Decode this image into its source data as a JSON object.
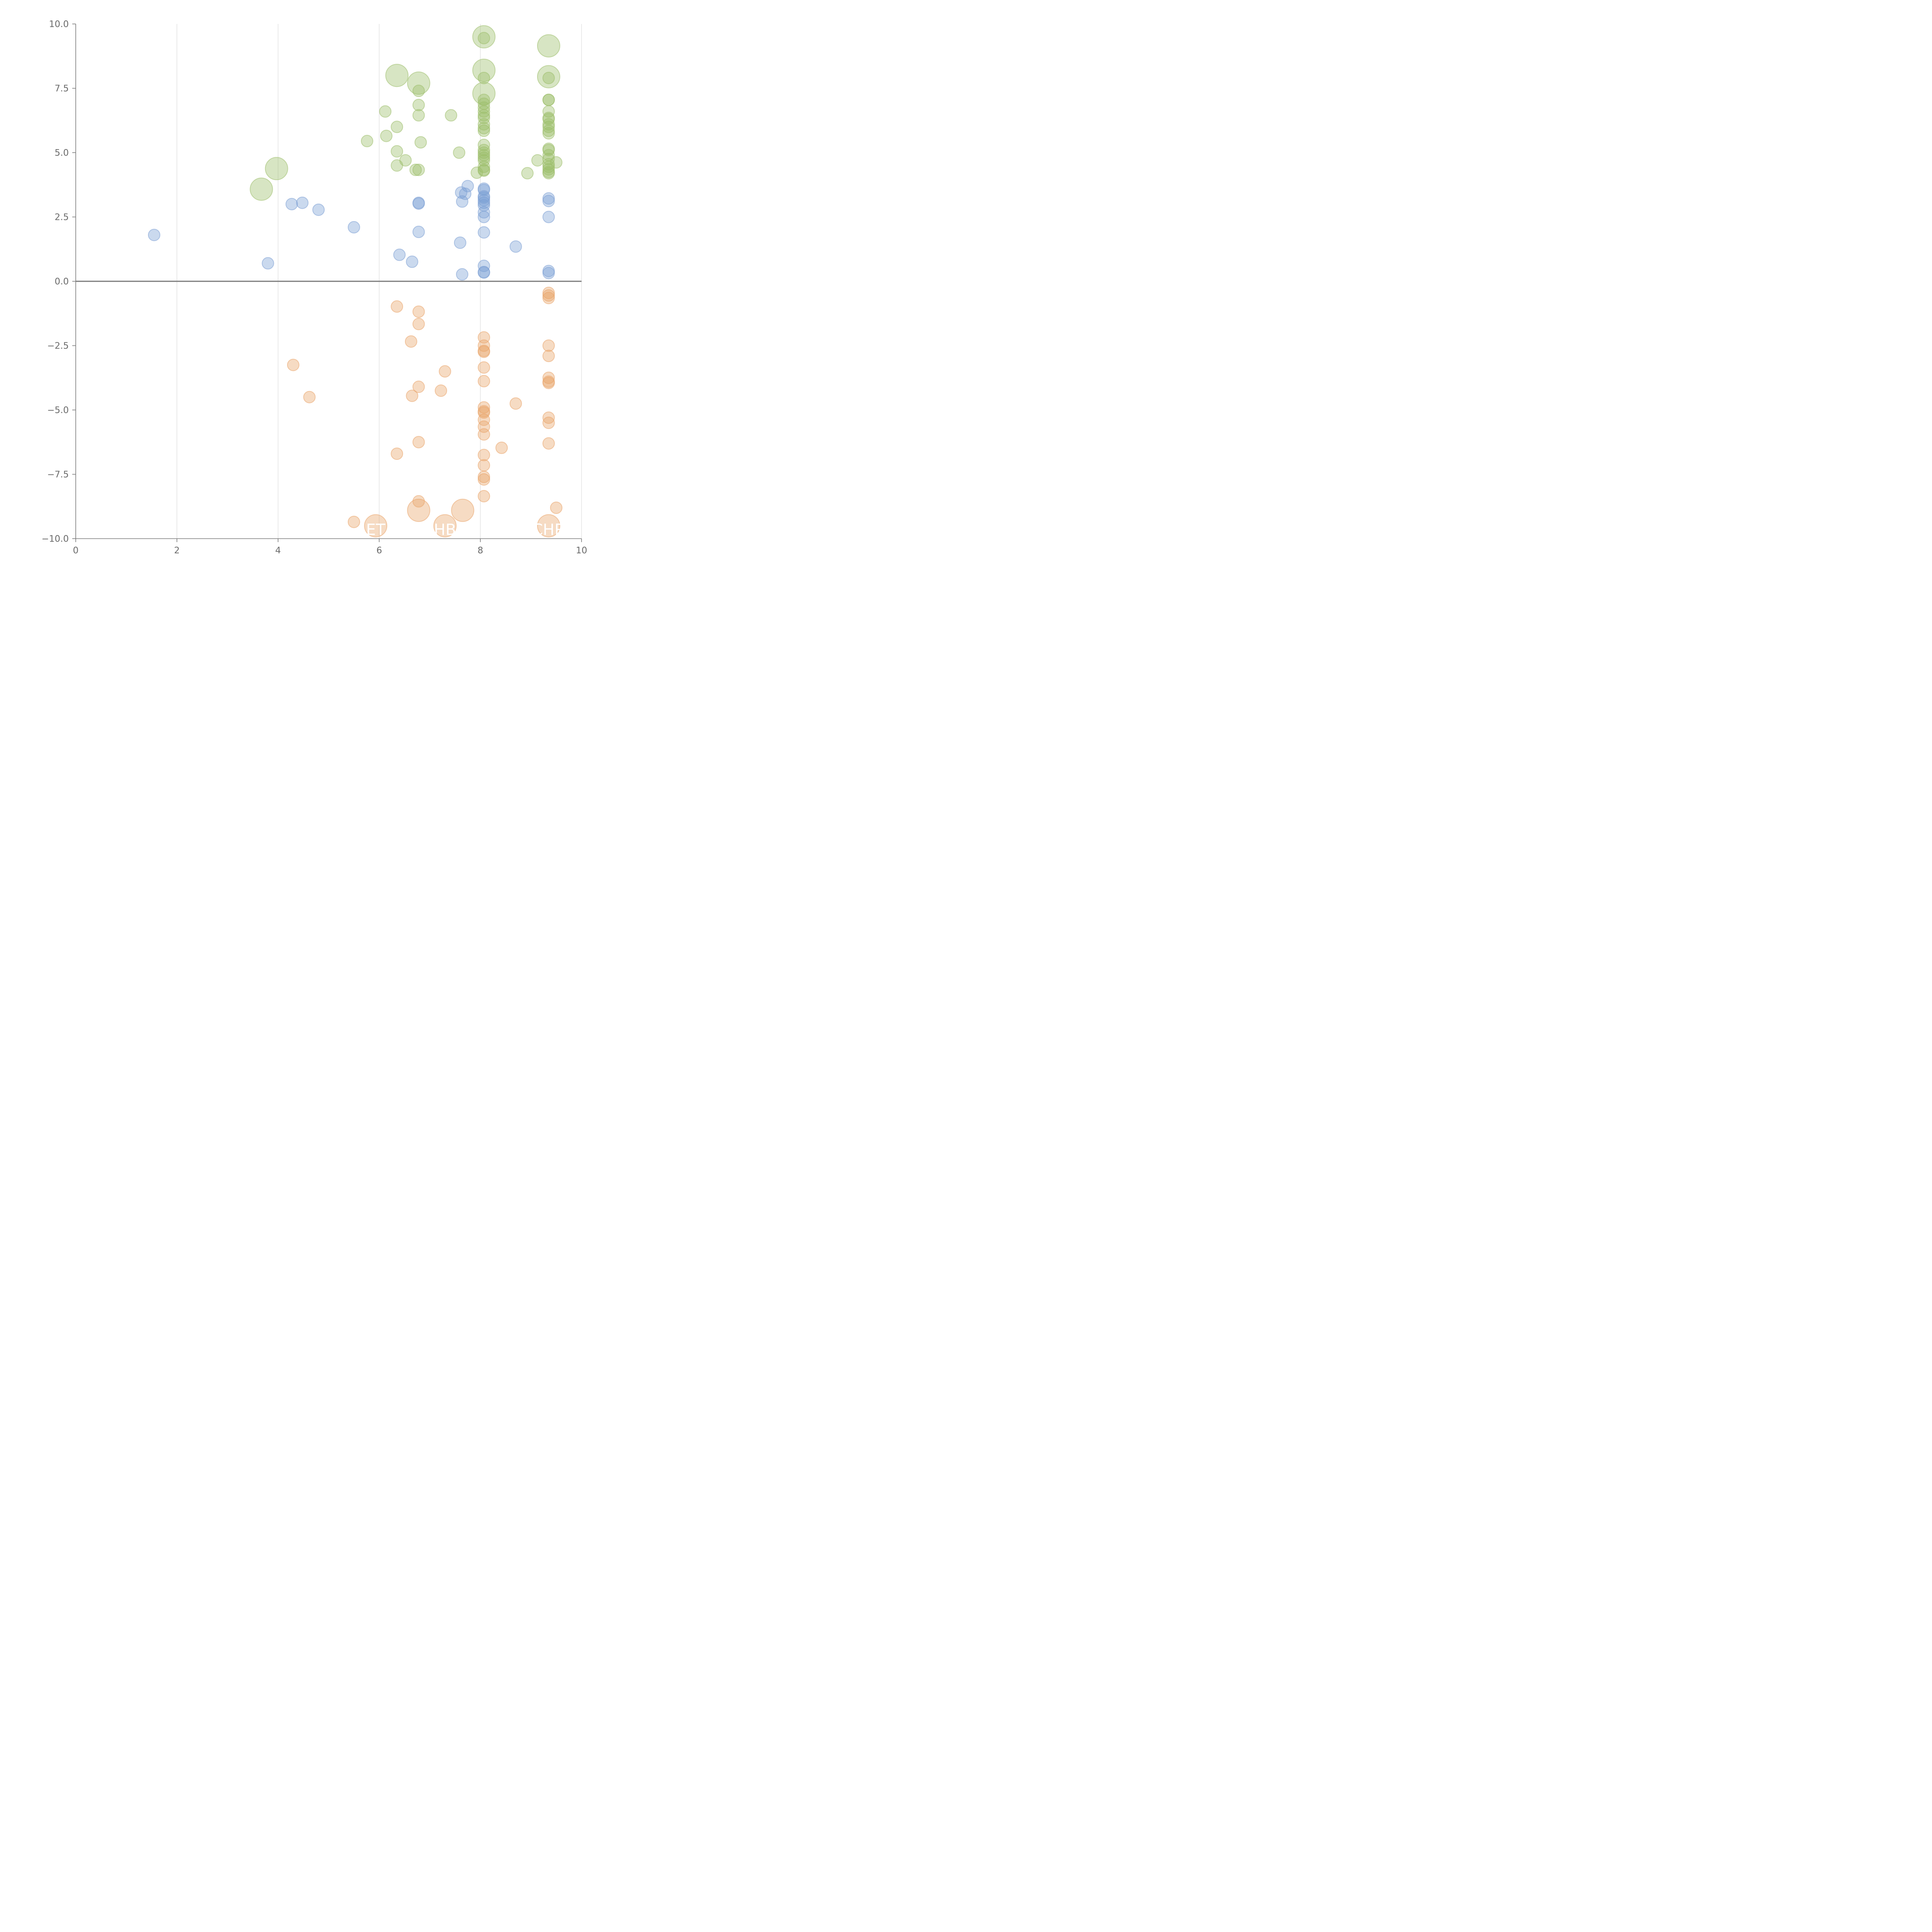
{
  "chart_data": {
    "type": "scatter",
    "title": "",
    "xlabel": "",
    "ylabel": "",
    "xlim": [
      0,
      10
    ],
    "ylim": [
      -10,
      10
    ],
    "x_ticks": [
      "0",
      "2",
      "4",
      "6",
      "8",
      "10"
    ],
    "y_ticks": [
      "10.0",
      "7.5",
      "5.0",
      "2.5",
      "0.0",
      "−2.5",
      "−5.0",
      "−7.5",
      "−10.0"
    ],
    "x_tick_values": [
      0,
      2,
      4,
      6,
      8,
      10
    ],
    "y_tick_values": [
      10,
      7.5,
      5,
      2.5,
      0,
      -2.5,
      -5,
      -7.5,
      -10
    ],
    "grid": "vertical",
    "zero_line": true,
    "series": [
      {
        "color": "#9cbe6a",
        "points": [
          {
            "x": 8.07,
            "y": 9.5,
            "s": 3
          },
          {
            "x": 8.07,
            "y": 9.45,
            "s": 1
          },
          {
            "x": 9.35,
            "y": 9.15,
            "s": 3
          },
          {
            "x": 8.07,
            "y": 8.2,
            "s": 3
          },
          {
            "x": 9.35,
            "y": 7.95,
            "s": 3
          },
          {
            "x": 6.35,
            "y": 8.0,
            "s": 3
          },
          {
            "x": 6.78,
            "y": 7.7,
            "s": 3
          },
          {
            "x": 8.07,
            "y": 7.9,
            "s": 1
          },
          {
            "x": 9.35,
            "y": 7.9,
            "s": 1
          },
          {
            "x": 6.78,
            "y": 7.4,
            "s": 1
          },
          {
            "x": 8.07,
            "y": 7.3,
            "s": 3
          },
          {
            "x": 8.07,
            "y": 7.05,
            "s": 1
          },
          {
            "x": 9.35,
            "y": 7.05,
            "s": 1
          },
          {
            "x": 9.35,
            "y": 7.05,
            "s": 1
          },
          {
            "x": 8.07,
            "y": 6.9,
            "s": 1
          },
          {
            "x": 8.07,
            "y": 6.75,
            "s": 1
          },
          {
            "x": 8.07,
            "y": 6.6,
            "s": 1
          },
          {
            "x": 6.78,
            "y": 6.85,
            "s": 1
          },
          {
            "x": 6.12,
            "y": 6.6,
            "s": 1
          },
          {
            "x": 9.35,
            "y": 6.6,
            "s": 1
          },
          {
            "x": 7.42,
            "y": 6.45,
            "s": 1
          },
          {
            "x": 6.78,
            "y": 6.45,
            "s": 1
          },
          {
            "x": 8.07,
            "y": 6.45,
            "s": 1
          },
          {
            "x": 8.07,
            "y": 6.35,
            "s": 1
          },
          {
            "x": 9.35,
            "y": 6.35,
            "s": 1
          },
          {
            "x": 9.35,
            "y": 6.3,
            "s": 1
          },
          {
            "x": 8.07,
            "y": 6.1,
            "s": 1
          },
          {
            "x": 9.35,
            "y": 6.1,
            "s": 1
          },
          {
            "x": 9.35,
            "y": 6.0,
            "s": 1
          },
          {
            "x": 6.35,
            "y": 6.0,
            "s": 1
          },
          {
            "x": 8.07,
            "y": 5.95,
            "s": 1
          },
          {
            "x": 8.07,
            "y": 5.85,
            "s": 1
          },
          {
            "x": 9.35,
            "y": 5.85,
            "s": 1
          },
          {
            "x": 9.35,
            "y": 5.75,
            "s": 1
          },
          {
            "x": 6.14,
            "y": 5.65,
            "s": 1
          },
          {
            "x": 5.76,
            "y": 5.45,
            "s": 1
          },
          {
            "x": 6.82,
            "y": 5.4,
            "s": 1
          },
          {
            "x": 8.07,
            "y": 5.3,
            "s": 1
          },
          {
            "x": 9.35,
            "y": 5.15,
            "s": 1
          },
          {
            "x": 9.35,
            "y": 5.1,
            "s": 1
          },
          {
            "x": 8.07,
            "y": 5.1,
            "s": 1
          },
          {
            "x": 8.07,
            "y": 5.0,
            "s": 1
          },
          {
            "x": 6.35,
            "y": 5.05,
            "s": 1
          },
          {
            "x": 7.58,
            "y": 5.0,
            "s": 1
          },
          {
            "x": 8.07,
            "y": 4.9,
            "s": 1
          },
          {
            "x": 9.35,
            "y": 4.9,
            "s": 1
          },
          {
            "x": 8.07,
            "y": 4.8,
            "s": 1
          },
          {
            "x": 9.13,
            "y": 4.7,
            "s": 1
          },
          {
            "x": 9.35,
            "y": 4.75,
            "s": 1
          },
          {
            "x": 6.52,
            "y": 4.7,
            "s": 1
          },
          {
            "x": 8.07,
            "y": 4.7,
            "s": 1
          },
          {
            "x": 9.5,
            "y": 4.62,
            "s": 1
          },
          {
            "x": 9.35,
            "y": 4.55,
            "s": 1
          },
          {
            "x": 6.35,
            "y": 4.5,
            "s": 1
          },
          {
            "x": 8.07,
            "y": 4.45,
            "s": 1
          },
          {
            "x": 9.35,
            "y": 4.45,
            "s": 1
          },
          {
            "x": 3.97,
            "y": 4.38,
            "s": 3
          },
          {
            "x": 6.72,
            "y": 4.33,
            "s": 1
          },
          {
            "x": 6.78,
            "y": 4.33,
            "s": 1
          },
          {
            "x": 9.35,
            "y": 4.35,
            "s": 1
          },
          {
            "x": 8.07,
            "y": 4.33,
            "s": 1
          },
          {
            "x": 8.07,
            "y": 4.3,
            "s": 1
          },
          {
            "x": 9.35,
            "y": 4.25,
            "s": 1
          },
          {
            "x": 7.93,
            "y": 4.22,
            "s": 1
          },
          {
            "x": 9.35,
            "y": 4.2,
            "s": 1
          },
          {
            "x": 8.93,
            "y": 4.2,
            "s": 1
          },
          {
            "x": 3.67,
            "y": 3.58,
            "s": 3
          }
        ]
      },
      {
        "color": "#7b9fd4",
        "points": [
          {
            "x": 7.75,
            "y": 3.7,
            "s": 1
          },
          {
            "x": 8.07,
            "y": 3.6,
            "s": 1
          },
          {
            "x": 8.07,
            "y": 3.55,
            "s": 1
          },
          {
            "x": 7.62,
            "y": 3.45,
            "s": 1
          },
          {
            "x": 7.7,
            "y": 3.4,
            "s": 1
          },
          {
            "x": 8.07,
            "y": 3.3,
            "s": 1
          },
          {
            "x": 8.07,
            "y": 3.25,
            "s": 1
          },
          {
            "x": 9.35,
            "y": 3.22,
            "s": 1
          },
          {
            "x": 8.07,
            "y": 3.15,
            "s": 1
          },
          {
            "x": 9.35,
            "y": 3.12,
            "s": 1
          },
          {
            "x": 7.64,
            "y": 3.1,
            "s": 1
          },
          {
            "x": 8.07,
            "y": 3.05,
            "s": 1
          },
          {
            "x": 4.48,
            "y": 3.05,
            "s": 1
          },
          {
            "x": 6.78,
            "y": 3.05,
            "s": 1
          },
          {
            "x": 6.78,
            "y": 3.02,
            "s": 1
          },
          {
            "x": 4.27,
            "y": 3.0,
            "s": 1
          },
          {
            "x": 8.07,
            "y": 2.95,
            "s": 1
          },
          {
            "x": 4.8,
            "y": 2.78,
            "s": 1
          },
          {
            "x": 8.07,
            "y": 2.68,
            "s": 1
          },
          {
            "x": 8.07,
            "y": 2.5,
            "s": 1
          },
          {
            "x": 9.35,
            "y": 2.5,
            "s": 1
          },
          {
            "x": 5.5,
            "y": 2.1,
            "s": 1
          },
          {
            "x": 6.78,
            "y": 1.92,
            "s": 1
          },
          {
            "x": 8.07,
            "y": 1.9,
            "s": 1
          },
          {
            "x": 1.55,
            "y": 1.8,
            "s": 1
          },
          {
            "x": 7.6,
            "y": 1.5,
            "s": 1
          },
          {
            "x": 8.7,
            "y": 1.35,
            "s": 1
          },
          {
            "x": 6.4,
            "y": 1.03,
            "s": 1
          },
          {
            "x": 6.65,
            "y": 0.76,
            "s": 1
          },
          {
            "x": 3.8,
            "y": 0.7,
            "s": 1
          },
          {
            "x": 8.07,
            "y": 0.6,
            "s": 1
          },
          {
            "x": 9.35,
            "y": 0.4,
            "s": 1
          },
          {
            "x": 8.07,
            "y": 0.36,
            "s": 1
          },
          {
            "x": 8.07,
            "y": 0.34,
            "s": 1
          },
          {
            "x": 9.35,
            "y": 0.32,
            "s": 1
          },
          {
            "x": 7.64,
            "y": 0.27,
            "s": 1
          }
        ]
      },
      {
        "color": "#e9a46a",
        "points": [
          {
            "x": 9.35,
            "y": -0.45,
            "s": 1
          },
          {
            "x": 9.35,
            "y": -0.55,
            "s": 1
          },
          {
            "x": 9.35,
            "y": -0.65,
            "s": 1
          },
          {
            "x": 6.35,
            "y": -0.98,
            "s": 1
          },
          {
            "x": 6.78,
            "y": -1.18,
            "s": 1
          },
          {
            "x": 6.78,
            "y": -1.66,
            "s": 1
          },
          {
            "x": 8.07,
            "y": -2.18,
            "s": 1
          },
          {
            "x": 6.63,
            "y": -2.34,
            "s": 1
          },
          {
            "x": 8.07,
            "y": -2.5,
            "s": 1
          },
          {
            "x": 9.35,
            "y": -2.5,
            "s": 1
          },
          {
            "x": 8.07,
            "y": -2.7,
            "s": 1
          },
          {
            "x": 8.07,
            "y": -2.74,
            "s": 1
          },
          {
            "x": 9.35,
            "y": -2.9,
            "s": 1
          },
          {
            "x": 4.3,
            "y": -3.25,
            "s": 1
          },
          {
            "x": 8.07,
            "y": -3.35,
            "s": 1
          },
          {
            "x": 7.3,
            "y": -3.5,
            "s": 1
          },
          {
            "x": 9.35,
            "y": -3.75,
            "s": 1
          },
          {
            "x": 8.07,
            "y": -3.88,
            "s": 1
          },
          {
            "x": 9.35,
            "y": -3.9,
            "s": 1
          },
          {
            "x": 9.35,
            "y": -3.95,
            "s": 1
          },
          {
            "x": 6.78,
            "y": -4.1,
            "s": 1
          },
          {
            "x": 7.22,
            "y": -4.25,
            "s": 1
          },
          {
            "x": 6.65,
            "y": -4.45,
            "s": 1
          },
          {
            "x": 4.62,
            "y": -4.5,
            "s": 1
          },
          {
            "x": 8.7,
            "y": -4.75,
            "s": 1
          },
          {
            "x": 8.07,
            "y": -4.9,
            "s": 1
          },
          {
            "x": 8.07,
            "y": -5.05,
            "s": 1
          },
          {
            "x": 8.07,
            "y": -5.1,
            "s": 1
          },
          {
            "x": 9.35,
            "y": -5.3,
            "s": 1
          },
          {
            "x": 8.07,
            "y": -5.38,
            "s": 1
          },
          {
            "x": 9.35,
            "y": -5.5,
            "s": 1
          },
          {
            "x": 8.07,
            "y": -5.65,
            "s": 1
          },
          {
            "x": 8.07,
            "y": -5.95,
            "s": 1
          },
          {
            "x": 6.78,
            "y": -6.25,
            "s": 1
          },
          {
            "x": 9.35,
            "y": -6.3,
            "s": 1
          },
          {
            "x": 8.42,
            "y": -6.47,
            "s": 1
          },
          {
            "x": 6.35,
            "y": -6.7,
            "s": 1
          },
          {
            "x": 8.07,
            "y": -6.75,
            "s": 1
          },
          {
            "x": 8.07,
            "y": -7.15,
            "s": 1
          },
          {
            "x": 8.07,
            "y": -7.6,
            "s": 1
          },
          {
            "x": 8.07,
            "y": -7.7,
            "s": 1
          },
          {
            "x": 8.07,
            "y": -8.35,
            "s": 1
          },
          {
            "x": 6.78,
            "y": -8.55,
            "s": 1
          },
          {
            "x": 9.5,
            "y": -8.8,
            "s": 1
          },
          {
            "x": 6.78,
            "y": -8.9,
            "s": 3
          },
          {
            "x": 7.65,
            "y": -8.9,
            "s": 3
          },
          {
            "x": 5.5,
            "y": -9.35,
            "s": 1
          },
          {
            "x": 5.93,
            "y": -9.5,
            "s": 3
          },
          {
            "x": 7.3,
            "y": -9.5,
            "s": 3
          },
          {
            "x": 9.35,
            "y": -9.5,
            "s": 3
          }
        ]
      }
    ],
    "bubble_labels": [
      {
        "text": "ET",
        "x": 5.93,
        "y": -9.65
      },
      {
        "text": "HB",
        "x": 7.3,
        "y": -9.65
      },
      {
        "text": "CHR",
        "x": 9.35,
        "y": -9.65
      }
    ]
  }
}
